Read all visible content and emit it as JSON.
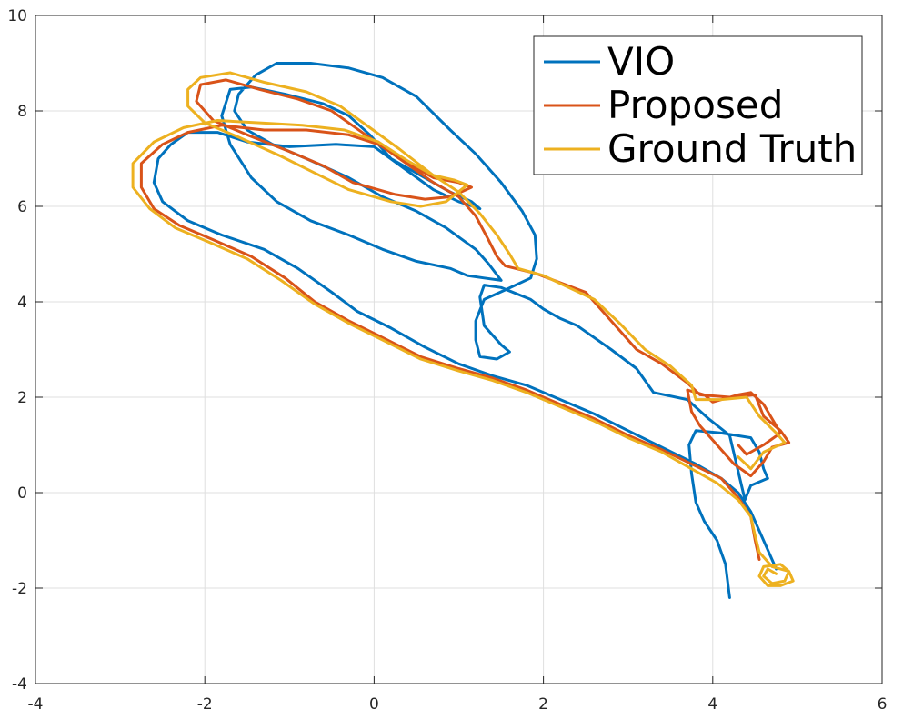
{
  "chart_data": {
    "type": "line",
    "title": "",
    "xlabel": "",
    "ylabel": "",
    "xlim": [
      -4,
      6
    ],
    "ylim": [
      -4,
      10
    ],
    "xticks": [
      -4,
      -2,
      0,
      2,
      4,
      6
    ],
    "yticks": [
      -4,
      -2,
      0,
      2,
      4,
      6,
      8,
      10
    ],
    "xtick_labels": [
      "-4",
      "-2",
      "0",
      "2",
      "4",
      "6"
    ],
    "ytick_labels": [
      "-4",
      "-2",
      "0",
      "2",
      "4",
      "6",
      "8",
      "10"
    ],
    "grid": true,
    "legend_position": "top-right",
    "series": [
      {
        "name": "VIO",
        "color": "#0072BD",
        "points": [
          [
            4.2,
            -2.2
          ],
          [
            4.15,
            -1.5
          ],
          [
            4.05,
            -1.0
          ],
          [
            3.9,
            -0.6
          ],
          [
            3.8,
            -0.2
          ],
          [
            3.75,
            0.4
          ],
          [
            3.72,
            1.0
          ],
          [
            3.8,
            1.3
          ],
          [
            4.1,
            1.25
          ],
          [
            4.45,
            1.15
          ],
          [
            4.55,
            0.85
          ],
          [
            4.6,
            0.5
          ],
          [
            4.65,
            0.3
          ],
          [
            4.45,
            0.15
          ],
          [
            4.38,
            -0.15
          ],
          [
            4.2,
            1.2
          ],
          [
            3.95,
            1.55
          ],
          [
            3.7,
            1.95
          ],
          [
            3.3,
            2.1
          ],
          [
            3.1,
            2.6
          ],
          [
            2.8,
            3.0
          ],
          [
            2.4,
            3.5
          ],
          [
            2.2,
            3.65
          ],
          [
            2.0,
            3.85
          ],
          [
            1.85,
            4.05
          ],
          [
            1.5,
            4.3
          ],
          [
            1.3,
            4.35
          ],
          [
            1.25,
            4.1
          ],
          [
            1.3,
            3.5
          ],
          [
            1.4,
            3.3
          ],
          [
            1.5,
            3.1
          ],
          [
            1.6,
            2.95
          ],
          [
            1.45,
            2.8
          ],
          [
            1.25,
            2.85
          ],
          [
            1.2,
            3.2
          ],
          [
            1.2,
            3.6
          ],
          [
            1.3,
            4.05
          ],
          [
            1.55,
            4.25
          ],
          [
            1.85,
            4.5
          ],
          [
            1.92,
            4.9
          ],
          [
            1.9,
            5.4
          ],
          [
            1.75,
            5.9
          ],
          [
            1.5,
            6.5
          ],
          [
            1.2,
            7.1
          ],
          [
            0.9,
            7.6
          ],
          [
            0.5,
            8.3
          ],
          [
            0.1,
            8.7
          ],
          [
            -0.3,
            8.9
          ],
          [
            -0.75,
            9.0
          ],
          [
            -1.15,
            9.0
          ],
          [
            -1.4,
            8.75
          ],
          [
            -1.6,
            8.35
          ],
          [
            -1.65,
            8.0
          ],
          [
            -1.5,
            7.6
          ],
          [
            -1.2,
            7.3
          ],
          [
            -0.8,
            7.0
          ],
          [
            -0.3,
            6.6
          ],
          [
            0.1,
            6.2
          ],
          [
            0.5,
            5.9
          ],
          [
            0.85,
            5.55
          ],
          [
            1.2,
            5.1
          ],
          [
            1.35,
            4.8
          ],
          [
            1.5,
            4.45
          ],
          [
            1.3,
            4.5
          ],
          [
            1.1,
            4.55
          ],
          [
            0.9,
            4.7
          ],
          [
            0.5,
            4.85
          ],
          [
            0.1,
            5.1
          ],
          [
            -0.3,
            5.4
          ],
          [
            -0.75,
            5.7
          ],
          [
            -1.15,
            6.1
          ],
          [
            -1.45,
            6.6
          ],
          [
            -1.7,
            7.3
          ],
          [
            -1.8,
            7.9
          ],
          [
            -1.7,
            8.45
          ],
          [
            -1.45,
            8.5
          ],
          [
            -1.05,
            8.35
          ],
          [
            -0.6,
            8.15
          ],
          [
            -0.3,
            7.9
          ],
          [
            -0.05,
            7.5
          ],
          [
            0.2,
            7.0
          ],
          [
            0.5,
            6.7
          ],
          [
            0.9,
            6.3
          ],
          [
            1.15,
            6.1
          ],
          [
            1.25,
            5.95
          ],
          [
            1.0,
            6.1
          ],
          [
            0.7,
            6.35
          ],
          [
            0.35,
            6.8
          ],
          [
            0.0,
            7.25
          ],
          [
            -0.45,
            7.3
          ],
          [
            -1.0,
            7.25
          ],
          [
            -1.5,
            7.35
          ],
          [
            -1.85,
            7.55
          ],
          [
            -2.2,
            7.55
          ],
          [
            -2.4,
            7.3
          ],
          [
            -2.55,
            7.0
          ],
          [
            -2.6,
            6.5
          ],
          [
            -2.5,
            6.1
          ],
          [
            -2.2,
            5.7
          ],
          [
            -1.8,
            5.4
          ],
          [
            -1.3,
            5.1
          ],
          [
            -0.9,
            4.7
          ],
          [
            -0.5,
            4.2
          ],
          [
            -0.2,
            3.8
          ],
          [
            0.2,
            3.45
          ],
          [
            0.6,
            3.05
          ],
          [
            1.0,
            2.7
          ],
          [
            1.4,
            2.45
          ],
          [
            1.8,
            2.25
          ],
          [
            2.2,
            1.95
          ],
          [
            2.6,
            1.65
          ],
          [
            3.0,
            1.3
          ],
          [
            3.4,
            0.95
          ],
          [
            3.8,
            0.6
          ],
          [
            4.1,
            0.3
          ],
          [
            4.3,
            0.0
          ],
          [
            4.45,
            -0.4
          ],
          [
            4.55,
            -0.8
          ],
          [
            4.65,
            -1.2
          ],
          [
            4.75,
            -1.6
          ]
        ]
      },
      {
        "name": "Proposed",
        "color": "#D95319",
        "points": [
          [
            4.55,
            -1.4
          ],
          [
            4.5,
            -1.0
          ],
          [
            4.45,
            -0.5
          ],
          [
            4.3,
            -0.1
          ],
          [
            4.1,
            0.3
          ],
          [
            3.75,
            0.6
          ],
          [
            3.4,
            0.9
          ],
          [
            3.0,
            1.2
          ],
          [
            2.6,
            1.55
          ],
          [
            2.2,
            1.85
          ],
          [
            1.8,
            2.15
          ],
          [
            1.4,
            2.4
          ],
          [
            1.0,
            2.6
          ],
          [
            0.55,
            2.85
          ],
          [
            0.1,
            3.25
          ],
          [
            -0.3,
            3.6
          ],
          [
            -0.7,
            4.0
          ],
          [
            -1.05,
            4.5
          ],
          [
            -1.45,
            4.95
          ],
          [
            -1.9,
            5.3
          ],
          [
            -2.3,
            5.6
          ],
          [
            -2.6,
            5.95
          ],
          [
            -2.75,
            6.4
          ],
          [
            -2.75,
            6.9
          ],
          [
            -2.5,
            7.3
          ],
          [
            -2.2,
            7.55
          ],
          [
            -1.8,
            7.7
          ],
          [
            -1.3,
            7.6
          ],
          [
            -0.8,
            7.6
          ],
          [
            -0.3,
            7.5
          ],
          [
            0.05,
            7.3
          ],
          [
            0.4,
            6.9
          ],
          [
            0.7,
            6.6
          ],
          [
            1.0,
            6.5
          ],
          [
            1.15,
            6.4
          ],
          [
            0.9,
            6.2
          ],
          [
            0.6,
            6.15
          ],
          [
            0.25,
            6.25
          ],
          [
            -0.25,
            6.5
          ],
          [
            -0.6,
            6.85
          ],
          [
            -1.0,
            7.15
          ],
          [
            -1.5,
            7.5
          ],
          [
            -1.9,
            7.8
          ],
          [
            -2.1,
            8.2
          ],
          [
            -2.05,
            8.55
          ],
          [
            -1.75,
            8.65
          ],
          [
            -1.35,
            8.45
          ],
          [
            -0.9,
            8.25
          ],
          [
            -0.5,
            8.0
          ],
          [
            -0.1,
            7.5
          ],
          [
            0.3,
            7.0
          ],
          [
            0.7,
            6.5
          ],
          [
            1.0,
            6.2
          ],
          [
            1.2,
            5.8
          ],
          [
            1.35,
            5.3
          ],
          [
            1.45,
            4.95
          ],
          [
            1.55,
            4.75
          ],
          [
            1.9,
            4.6
          ],
          [
            2.2,
            4.4
          ],
          [
            2.5,
            4.2
          ],
          [
            2.8,
            3.6
          ],
          [
            3.1,
            3.0
          ],
          [
            3.4,
            2.7
          ],
          [
            3.7,
            2.3
          ],
          [
            3.85,
            2.05
          ],
          [
            4.2,
            2.0
          ],
          [
            4.5,
            2.05
          ],
          [
            4.6,
            1.6
          ],
          [
            4.8,
            1.3
          ],
          [
            4.9,
            1.05
          ],
          [
            4.7,
            0.95
          ],
          [
            4.6,
            0.65
          ],
          [
            4.45,
            0.35
          ],
          [
            4.25,
            0.6
          ],
          [
            4.05,
            1.0
          ],
          [
            3.85,
            1.4
          ],
          [
            3.75,
            1.7
          ],
          [
            3.7,
            2.15
          ],
          [
            3.9,
            2.05
          ],
          [
            4.0,
            1.9
          ],
          [
            4.3,
            2.05
          ],
          [
            4.45,
            2.1
          ],
          [
            4.6,
            1.85
          ],
          [
            4.8,
            1.25
          ],
          [
            4.6,
            1.0
          ],
          [
            4.4,
            0.8
          ],
          [
            4.3,
            1.0
          ]
        ]
      },
      {
        "name": "Ground Truth",
        "color": "#EDB120",
        "points": [
          [
            4.75,
            -1.7
          ],
          [
            4.65,
            -1.6
          ],
          [
            4.6,
            -1.75
          ],
          [
            4.7,
            -1.9
          ],
          [
            4.85,
            -1.85
          ],
          [
            4.9,
            -1.65
          ],
          [
            4.8,
            -1.5
          ],
          [
            4.6,
            -1.55
          ],
          [
            4.55,
            -1.75
          ],
          [
            4.65,
            -1.95
          ],
          [
            4.8,
            -1.95
          ],
          [
            4.95,
            -1.85
          ],
          [
            4.9,
            -1.65
          ],
          [
            4.7,
            -1.55
          ],
          [
            4.55,
            -1.25
          ],
          [
            4.5,
            -0.9
          ],
          [
            4.45,
            -0.5
          ],
          [
            4.3,
            -0.15
          ],
          [
            4.05,
            0.2
          ],
          [
            3.75,
            0.5
          ],
          [
            3.4,
            0.85
          ],
          [
            3.0,
            1.15
          ],
          [
            2.6,
            1.5
          ],
          [
            2.2,
            1.8
          ],
          [
            1.8,
            2.1
          ],
          [
            1.4,
            2.35
          ],
          [
            1.0,
            2.55
          ],
          [
            0.55,
            2.8
          ],
          [
            0.1,
            3.2
          ],
          [
            -0.3,
            3.55
          ],
          [
            -0.7,
            3.95
          ],
          [
            -1.1,
            4.45
          ],
          [
            -1.5,
            4.9
          ],
          [
            -1.95,
            5.25
          ],
          [
            -2.35,
            5.55
          ],
          [
            -2.65,
            5.95
          ],
          [
            -2.85,
            6.4
          ],
          [
            -2.85,
            6.9
          ],
          [
            -2.6,
            7.35
          ],
          [
            -2.25,
            7.65
          ],
          [
            -1.85,
            7.8
          ],
          [
            -1.35,
            7.75
          ],
          [
            -0.85,
            7.7
          ],
          [
            -0.35,
            7.6
          ],
          [
            0.05,
            7.35
          ],
          [
            0.4,
            6.95
          ],
          [
            0.7,
            6.65
          ],
          [
            0.95,
            6.55
          ],
          [
            1.1,
            6.45
          ],
          [
            0.85,
            6.1
          ],
          [
            0.55,
            6.0
          ],
          [
            0.2,
            6.1
          ],
          [
            -0.3,
            6.35
          ],
          [
            -0.7,
            6.7
          ],
          [
            -1.1,
            7.05
          ],
          [
            -1.6,
            7.45
          ],
          [
            -2.0,
            7.75
          ],
          [
            -2.2,
            8.1
          ],
          [
            -2.2,
            8.45
          ],
          [
            -2.05,
            8.7
          ],
          [
            -1.7,
            8.8
          ],
          [
            -1.3,
            8.6
          ],
          [
            -0.8,
            8.4
          ],
          [
            -0.4,
            8.1
          ],
          [
            -0.05,
            7.65
          ],
          [
            0.3,
            7.2
          ],
          [
            0.7,
            6.65
          ],
          [
            1.0,
            6.3
          ],
          [
            1.25,
            5.85
          ],
          [
            1.45,
            5.4
          ],
          [
            1.6,
            5.0
          ],
          [
            1.7,
            4.7
          ],
          [
            2.0,
            4.55
          ],
          [
            2.3,
            4.3
          ],
          [
            2.6,
            4.05
          ],
          [
            2.9,
            3.55
          ],
          [
            3.2,
            3.0
          ],
          [
            3.5,
            2.65
          ],
          [
            3.75,
            2.25
          ],
          [
            3.8,
            1.95
          ],
          [
            4.1,
            1.95
          ],
          [
            4.4,
            2.0
          ],
          [
            4.55,
            1.6
          ],
          [
            4.75,
            1.25
          ],
          [
            4.85,
            1.05
          ],
          [
            4.6,
            0.85
          ],
          [
            4.45,
            0.5
          ],
          [
            4.3,
            0.75
          ]
        ]
      }
    ]
  }
}
